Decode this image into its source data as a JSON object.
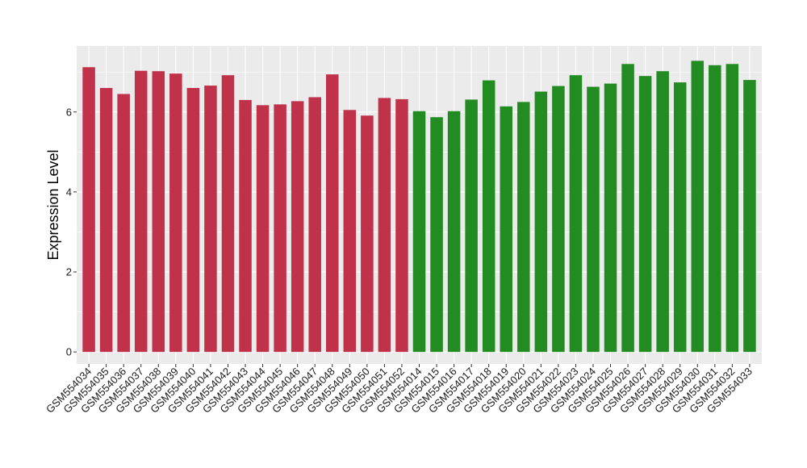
{
  "chart_data": {
    "type": "bar",
    "title": "",
    "xlabel": "",
    "ylabel": "Expression Level",
    "ylim": [
      -0.3,
      7.65
    ],
    "yticks": [
      0,
      2,
      4,
      6
    ],
    "grid": true,
    "legend": "none",
    "colors": {
      "group_1": "#C0314A",
      "group_2": "#228B22",
      "panel": "#EBEBEB",
      "gridline": "#FFFFFF"
    },
    "categories": [
      "GSM554034",
      "GSM554035",
      "GSM554036",
      "GSM554037",
      "GSM554038",
      "GSM554039",
      "GSM554040",
      "GSM554041",
      "GSM554042",
      "GSM554043",
      "GSM554044",
      "GSM554045",
      "GSM554046",
      "GSM554047",
      "GSM554048",
      "GSM554049",
      "GSM554050",
      "GSM554051",
      "GSM554052",
      "GSM554014",
      "GSM554015",
      "GSM554016",
      "GSM554017",
      "GSM554018",
      "GSM554019",
      "GSM554020",
      "GSM554021",
      "GSM554022",
      "GSM554023",
      "GSM554024",
      "GSM554025",
      "GSM554026",
      "GSM554027",
      "GSM554028",
      "GSM554029",
      "GSM554030",
      "GSM554031",
      "GSM554032",
      "GSM554033"
    ],
    "values": [
      7.12,
      6.6,
      6.45,
      7.03,
      7.02,
      6.96,
      6.6,
      6.66,
      6.92,
      6.3,
      6.17,
      6.19,
      6.27,
      6.37,
      6.94,
      6.05,
      5.91,
      6.35,
      6.32,
      6.02,
      5.87,
      6.02,
      6.31,
      6.79,
      6.14,
      6.25,
      6.51,
      6.65,
      6.92,
      6.63,
      6.71,
      7.2,
      6.9,
      7.02,
      6.74,
      7.28,
      7.17,
      7.2,
      6.8
    ],
    "bar_colors": [
      "#C0314A",
      "#C0314A",
      "#C0314A",
      "#C0314A",
      "#C0314A",
      "#C0314A",
      "#C0314A",
      "#C0314A",
      "#C0314A",
      "#C0314A",
      "#C0314A",
      "#C0314A",
      "#C0314A",
      "#C0314A",
      "#C0314A",
      "#C0314A",
      "#C0314A",
      "#C0314A",
      "#C0314A",
      "#228B22",
      "#228B22",
      "#228B22",
      "#228B22",
      "#228B22",
      "#228B22",
      "#228B22",
      "#228B22",
      "#228B22",
      "#228B22",
      "#228B22",
      "#228B22",
      "#228B22",
      "#228B22",
      "#228B22",
      "#228B22",
      "#228B22",
      "#228B22",
      "#228B22",
      "#228B22"
    ]
  }
}
